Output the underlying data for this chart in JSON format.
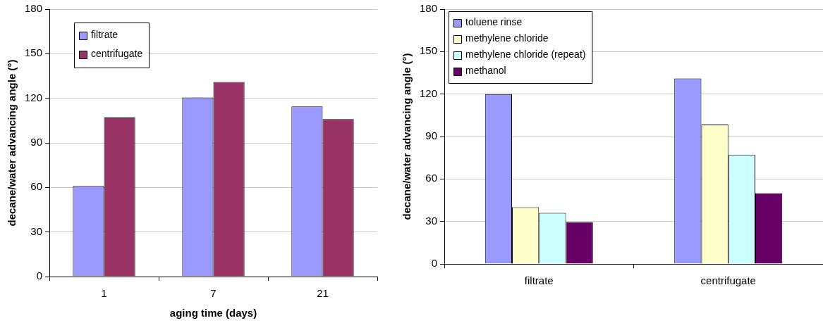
{
  "chart_data": [
    {
      "type": "bar",
      "xlabel": "aging time (days)",
      "ylabel": "decane/water advancing angle (°)",
      "categories": [
        "1",
        "7",
        "21"
      ],
      "series": [
        {
          "name": "filtrate",
          "color": "#9999ff",
          "values": [
            61,
            120.5,
            114.5
          ]
        },
        {
          "name": "centrifugate",
          "color": "#993366",
          "values": [
            107,
            131,
            106
          ]
        }
      ],
      "ylim": [
        0,
        180
      ],
      "yticks": [
        0,
        30,
        60,
        90,
        120,
        150,
        180
      ],
      "grid": "y",
      "legend": "top left"
    },
    {
      "type": "bar",
      "ylabel": "decane/water advancing angle (°)",
      "categories": [
        "filtrate",
        "centrifugate"
      ],
      "series": [
        {
          "name": "toluene rinse",
          "color": "#9999ff",
          "values": [
            120,
            131
          ]
        },
        {
          "name": "methylene chloride",
          "color": "#ffffcc",
          "values": [
            40,
            98.5
          ]
        },
        {
          "name": "methylene chloride (repeat)",
          "color": "#ccffff",
          "values": [
            36,
            77
          ]
        },
        {
          "name": "methanol",
          "color": "#660066",
          "values": [
            29.5,
            50
          ]
        }
      ],
      "ylim": [
        0,
        180
      ],
      "yticks": [
        0,
        30,
        60,
        90,
        120,
        150,
        180
      ],
      "grid": "y",
      "legend": "top left"
    }
  ]
}
